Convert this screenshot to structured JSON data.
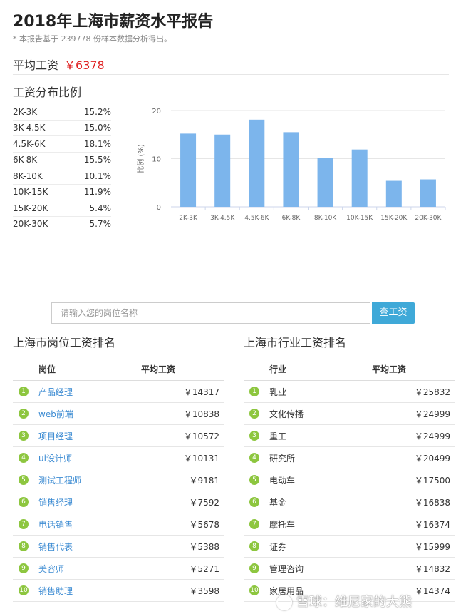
{
  "header": {
    "title": "2018年上海市薪资水平报告",
    "note": "* 本报告基于 239778 份样本数据分析得出。"
  },
  "average": {
    "label": "平均工资",
    "value": "￥6378"
  },
  "distribution": {
    "title": "工资分布比例",
    "rows": [
      {
        "range": "2K-3K",
        "pct": "15.2%"
      },
      {
        "range": "3K-4.5K",
        "pct": "15.0%"
      },
      {
        "range": "4.5K-6K",
        "pct": "18.1%"
      },
      {
        "range": "6K-8K",
        "pct": "15.5%"
      },
      {
        "range": "8K-10K",
        "pct": "10.1%"
      },
      {
        "range": "10K-15K",
        "pct": "11.9%"
      },
      {
        "range": "15K-20K",
        "pct": "5.4%"
      },
      {
        "range": "20K-30K",
        "pct": "5.7%"
      }
    ]
  },
  "chart_data": {
    "type": "bar",
    "categories": [
      "2K-3K",
      "3K-4.5K",
      "4.5K-6K",
      "6K-8K",
      "8K-10K",
      "10K-15K",
      "15K-20K",
      "20K-30K"
    ],
    "values": [
      15.2,
      15.0,
      18.1,
      15.5,
      10.1,
      11.9,
      5.4,
      5.7
    ],
    "ylabel": "比例 (%)",
    "yticks": [
      "0",
      "10",
      "20"
    ],
    "ylim": [
      0,
      20
    ],
    "color": "#7cb5ec"
  },
  "search": {
    "placeholder": "请输入您的岗位名称",
    "button": "查工资"
  },
  "job_ranking": {
    "title": "上海市岗位工资排名",
    "col_name": "岗位",
    "col_salary": "平均工资",
    "rows": [
      {
        "rank": "1",
        "name": "产品经理",
        "salary": "￥14317"
      },
      {
        "rank": "2",
        "name": "web前端",
        "salary": "￥10838"
      },
      {
        "rank": "3",
        "name": "项目经理",
        "salary": "￥10572"
      },
      {
        "rank": "4",
        "name": "ui设计师",
        "salary": "￥10131"
      },
      {
        "rank": "5",
        "name": "测试工程师",
        "salary": "￥9181"
      },
      {
        "rank": "6",
        "name": "销售经理",
        "salary": "￥7592"
      },
      {
        "rank": "7",
        "name": "电话销售",
        "salary": "￥5678"
      },
      {
        "rank": "8",
        "name": "销售代表",
        "salary": "￥5388"
      },
      {
        "rank": "9",
        "name": "美容师",
        "salary": "￥5271"
      },
      {
        "rank": "10",
        "name": "销售助理",
        "salary": "￥3598"
      }
    ]
  },
  "industry_ranking": {
    "title": "上海市行业工资排名",
    "col_name": "行业",
    "col_salary": "平均工资",
    "rows": [
      {
        "rank": "1",
        "name": "乳业",
        "salary": "￥25832"
      },
      {
        "rank": "2",
        "name": "文化传播",
        "salary": "￥24999"
      },
      {
        "rank": "3",
        "name": "重工",
        "salary": "￥24999"
      },
      {
        "rank": "4",
        "name": "研究所",
        "salary": "￥20499"
      },
      {
        "rank": "5",
        "name": "电动车",
        "salary": "￥17500"
      },
      {
        "rank": "6",
        "name": "基金",
        "salary": "￥16838"
      },
      {
        "rank": "7",
        "name": "摩托车",
        "salary": "￥16374"
      },
      {
        "rank": "8",
        "name": "证券",
        "salary": "￥15999"
      },
      {
        "rank": "9",
        "name": "管理咨询",
        "salary": "￥14832"
      },
      {
        "rank": "10",
        "name": "家居用品",
        "salary": "￥14374"
      }
    ]
  },
  "watermark": "雪球：维尼家的大熊"
}
